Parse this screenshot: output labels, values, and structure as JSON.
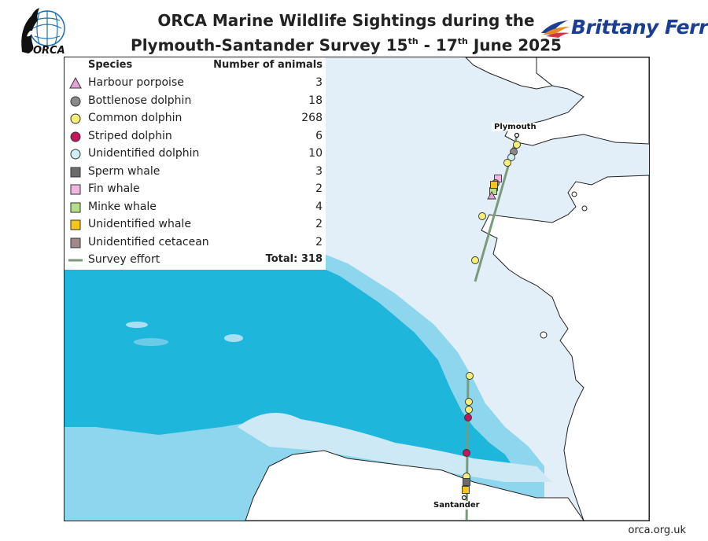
{
  "header": {
    "title_line1": "ORCA Marine Wildlife Sightings during the",
    "title_line2_prefix": "Plymouth-Santander Survey 15",
    "title_sup1": "th",
    "title_mid": " - 17",
    "title_sup2": "th",
    "title_suffix": " June 2025",
    "orca_logo_text": "ORCA",
    "partner_logo_text": "Brittany Ferries"
  },
  "legend": {
    "species_header": "Species",
    "count_header": "Number of animals",
    "rows": [
      {
        "label": "Harbour porpoise",
        "count": "3",
        "symbol": "triangle",
        "color": "#e5a3d4"
      },
      {
        "label": "Bottlenose dolphin",
        "count": "18",
        "symbol": "circle",
        "color": "#8a8a8a"
      },
      {
        "label": "Common dolphin",
        "count": "268",
        "symbol": "circle",
        "color": "#f5ee7a"
      },
      {
        "label": "Striped dolphin",
        "count": "6",
        "symbol": "circle",
        "color": "#c2185b"
      },
      {
        "label": "Unidentified dolphin",
        "count": "10",
        "symbol": "circle",
        "color": "#cfeef5"
      },
      {
        "label": "Sperm whale",
        "count": "3",
        "symbol": "square",
        "color": "#6b6b6b"
      },
      {
        "label": "Fin whale",
        "count": "2",
        "symbol": "square",
        "color": "#f2b8e0"
      },
      {
        "label": "Minke whale",
        "count": "4",
        "symbol": "square",
        "color": "#b6dd8a"
      },
      {
        "label": "Unidentified whale",
        "count": "2",
        "symbol": "square",
        "color": "#f5c518"
      },
      {
        "label": "Unidentified cetacean",
        "count": "2",
        "symbol": "square",
        "color": "#a08888"
      },
      {
        "label": "Survey effort",
        "count": "Total: 318",
        "symbol": "line",
        "color": "#7a9a7a"
      }
    ]
  },
  "map": {
    "ports": [
      {
        "name": "Plymouth"
      },
      {
        "name": "Santander"
      }
    ],
    "colors": {
      "deep_sea": "#1fb6dc",
      "slope": "#7fd0ea",
      "shelf": "#e3eff8",
      "land": "#ffffff",
      "track": "#7a9a7a"
    }
  },
  "footer": {
    "url": "orca.org.uk"
  }
}
